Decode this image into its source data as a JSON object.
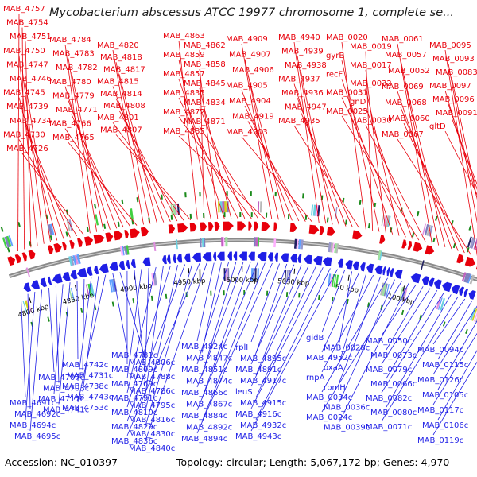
{
  "title": "Mycobacterium abscessus ATCC 19977 chromosome 1, complete se...",
  "footer": {
    "accession": "Accession: NC_010397",
    "stats": "Topology: circular; Length: 5,067,172 bp; Genes: 4,970"
  },
  "colors": {
    "forward": "#e8000b",
    "reverse": "#1f1fe6",
    "backbone": "#8a8a8a",
    "marker": "#1a8a1a"
  },
  "tick_labels": [
    "4800 kbp",
    "4850 kbp",
    "4900 kbp",
    "4950 kbp",
    "5000 kbp",
    "5050 kbp",
    "50 kbp",
    "100 kbp"
  ],
  "forward_labels": [
    "MAB_4757",
    "MAB_4754",
    "MAB_4751",
    "MAB_4750",
    "MAB_4747",
    "MAB_4746",
    "MAB_4745",
    "MAB_4739",
    "MAB_4734",
    "MAB_4730",
    "MAB_4726",
    "MAB_4784",
    "MAB_4783",
    "MAB_4782",
    "MAB_4780",
    "MAB_4779",
    "MAB_4771",
    "MAB_4766",
    "MAB_4765",
    "MAB_4820",
    "MAB_4818",
    "MAB_4817",
    "MAB_4815",
    "MAB_4814",
    "MAB_4808",
    "MAB_4801",
    "MAB_4807",
    "MAB_4863",
    "MAB_4862",
    "MAB_4859",
    "MAB_4858",
    "MAB_4857",
    "MAB_4845",
    "MAB_4835",
    "MAB_4834",
    "MAB_4872",
    "MAB_4871",
    "MAB_4885",
    "MAB_4909",
    "MAB_4907",
    "MAB_4906",
    "MAB_4905",
    "MAB_4904",
    "MAB_4919",
    "MAB_4903",
    "MAB_4940",
    "MAB_4939",
    "MAB_4938",
    "MAB_4937",
    "MAB_4936",
    "MAB_4947",
    "MAB_4935",
    "MAB_0020",
    "MAB_0019",
    "gyrB",
    "MAB_0017",
    "recF",
    "MAB_0032",
    "MAB_0031",
    "gnD",
    "MAB_0025",
    "MAB_0030",
    "MAB_0061",
    "MAB_0057",
    "MAB_0052",
    "MAB_0069",
    "MAB_0068",
    "MAB_0060",
    "MAB_0067",
    "MAB_0095",
    "MAB_0093",
    "MAB_0083",
    "MAB_0097",
    "MAB_0096",
    "MAB_0091",
    "gltD"
  ],
  "reverse_labels": [
    "MAB_4691c",
    "MAB_4692c",
    "MAB_4694c",
    "MAB_4695c",
    "MAB_4707c",
    "MAB_4703c",
    "MAB_4717c",
    "MAB_4741c",
    "MAB_4742c",
    "MAB_4731c",
    "MAB_4738c",
    "MAB_4743c",
    "MAB_4753c",
    "MAB_4781c",
    "MAB_4806c",
    "MAB_4809c",
    "MAB_4788c",
    "MAB_4769c",
    "MAB_4786c",
    "MAB_4791c",
    "MAB_4795c",
    "MAB_4810c",
    "MAB_4816c",
    "MAB_4829c",
    "MAB_4830c",
    "MAB_4836c",
    "MAB_4840c",
    "MAB_4824c",
    "MAB_4847c",
    "MAB_4851c",
    "MAB_4874c",
    "MAB_4866c",
    "MAB_4867c",
    "MAB_4884c",
    "MAB_4892c",
    "MAB_4894c",
    "rplI",
    "MAB_4895c",
    "MAB_4891c",
    "MAB_4917c",
    "leuS",
    "MAB_4915c",
    "MAB_4916c",
    "MAB_4932c",
    "MAB_4943c",
    "gidB",
    "MAB_0028c",
    "MAB_4952c",
    "oxaA",
    "rnpA",
    "rpmH",
    "MAB_0034c",
    "MAB_0036c",
    "MAB_0024c",
    "MAB_0039c",
    "MAB_0050c",
    "MAB_0073c",
    "MAB_0079c",
    "MAB_0066c",
    "MAB_0082c",
    "MAB_0080c",
    "MAB_0071c",
    "MAB_0094c",
    "MAB_0115c",
    "MAB_0126c",
    "MAB_0105c",
    "MAB_0117c",
    "MAB_0106c",
    "MAB_0119c"
  ]
}
